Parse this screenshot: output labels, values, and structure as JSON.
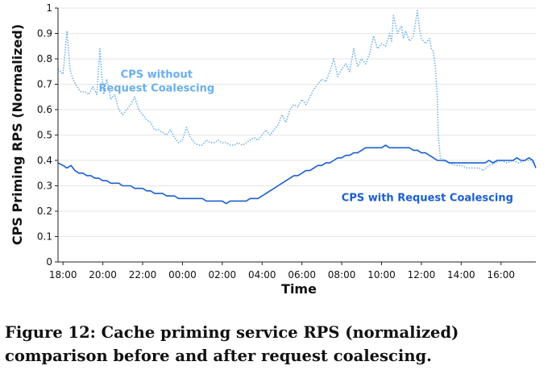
{
  "chart_data": {
    "type": "line",
    "xlabel": "Time",
    "ylabel": "CPS Priming RPS (Normalized)",
    "xlim": [
      -0.25,
      23.75
    ],
    "ylim": [
      0,
      1
    ],
    "x_ticks": [
      {
        "label": "18:00",
        "value": 0
      },
      {
        "label": "20:00",
        "value": 2
      },
      {
        "label": "22:00",
        "value": 4
      },
      {
        "label": "00:00",
        "value": 6
      },
      {
        "label": "02:00",
        "value": 8
      },
      {
        "label": "04:00",
        "value": 10
      },
      {
        "label": "06:00",
        "value": 12
      },
      {
        "label": "08:00",
        "value": 14
      },
      {
        "label": "10:00",
        "value": 16
      },
      {
        "label": "12:00",
        "value": 18
      },
      {
        "label": "14:00",
        "value": 20
      },
      {
        "label": "16:00",
        "value": 22
      }
    ],
    "y_ticks": [
      "0",
      "0.1",
      "0.2",
      "0.3",
      "0.4",
      "0.5",
      "0.6",
      "0.7",
      "0.8",
      "0.9",
      "1"
    ],
    "grid": true,
    "series": [
      {
        "name": "CPS without Request Coalescing",
        "color": "#6aaeea",
        "style": "dotted",
        "x": [
          -0.25,
          0.0,
          0.1,
          0.2,
          0.35,
          0.5,
          0.7,
          0.9,
          1.1,
          1.3,
          1.5,
          1.7,
          1.85,
          1.95,
          2.05,
          2.2,
          2.4,
          2.6,
          2.8,
          3.0,
          3.2,
          3.4,
          3.6,
          3.8,
          4.0,
          4.2,
          4.4,
          4.6,
          4.8,
          5.0,
          5.2,
          5.4,
          5.6,
          5.8,
          6.0,
          6.2,
          6.4,
          6.6,
          6.8,
          7.0,
          7.2,
          7.4,
          7.6,
          7.8,
          8.0,
          8.2,
          8.4,
          8.6,
          8.8,
          9.0,
          9.2,
          9.4,
          9.6,
          9.8,
          10.0,
          10.2,
          10.4,
          10.6,
          10.8,
          11.0,
          11.2,
          11.4,
          11.6,
          11.8,
          12.0,
          12.2,
          12.4,
          12.6,
          12.8,
          13.0,
          13.2,
          13.4,
          13.6,
          13.8,
          14.0,
          14.2,
          14.4,
          14.6,
          14.8,
          15.0,
          15.2,
          15.4,
          15.6,
          15.8,
          16.0,
          16.2,
          16.4,
          16.5,
          16.6,
          16.8,
          17.0,
          17.1,
          17.2,
          17.4,
          17.6,
          17.8,
          17.9,
          18.0,
          18.2,
          18.4,
          18.5,
          18.6,
          18.7,
          18.8,
          18.85,
          18.95,
          19.1,
          19.4,
          19.7,
          20.0,
          20.3,
          20.6,
          20.9,
          21.1,
          21.4,
          21.7,
          22.0,
          22.3,
          22.6,
          22.9,
          23.2,
          23.5,
          23.75
        ],
        "y": [
          0.76,
          0.74,
          0.82,
          0.91,
          0.76,
          0.72,
          0.69,
          0.67,
          0.67,
          0.66,
          0.69,
          0.66,
          0.84,
          0.73,
          0.66,
          0.72,
          0.64,
          0.66,
          0.6,
          0.58,
          0.6,
          0.62,
          0.65,
          0.6,
          0.58,
          0.56,
          0.55,
          0.52,
          0.52,
          0.51,
          0.5,
          0.52,
          0.49,
          0.47,
          0.48,
          0.53,
          0.49,
          0.47,
          0.46,
          0.46,
          0.48,
          0.47,
          0.47,
          0.48,
          0.47,
          0.47,
          0.46,
          0.46,
          0.47,
          0.46,
          0.47,
          0.48,
          0.49,
          0.48,
          0.5,
          0.52,
          0.5,
          0.52,
          0.54,
          0.58,
          0.55,
          0.6,
          0.62,
          0.61,
          0.64,
          0.62,
          0.65,
          0.68,
          0.7,
          0.72,
          0.71,
          0.75,
          0.8,
          0.73,
          0.76,
          0.78,
          0.75,
          0.84,
          0.77,
          0.8,
          0.78,
          0.82,
          0.89,
          0.84,
          0.86,
          0.85,
          0.9,
          0.87,
          0.97,
          0.9,
          0.93,
          0.88,
          0.91,
          0.87,
          0.89,
          0.99,
          0.92,
          0.88,
          0.86,
          0.88,
          0.84,
          0.83,
          0.77,
          0.65,
          0.5,
          0.41,
          0.4,
          0.39,
          0.38,
          0.38,
          0.37,
          0.37,
          0.37,
          0.36,
          0.38,
          0.39,
          0.4,
          0.39,
          0.4,
          0.39,
          0.4,
          0.4,
          0.38
        ]
      },
      {
        "name": "CPS with Request Coalescing",
        "color": "#1a5fd0",
        "style": "solid",
        "x": [
          -0.25,
          0.0,
          0.2,
          0.4,
          0.6,
          0.8,
          1.0,
          1.2,
          1.4,
          1.6,
          1.8,
          2.0,
          2.2,
          2.4,
          2.6,
          2.8,
          3.0,
          3.2,
          3.4,
          3.6,
          3.8,
          4.0,
          4.2,
          4.4,
          4.6,
          4.8,
          5.0,
          5.2,
          5.4,
          5.6,
          5.8,
          6.0,
          6.2,
          6.4,
          6.6,
          6.8,
          7.0,
          7.2,
          7.4,
          7.6,
          7.8,
          8.0,
          8.2,
          8.4,
          8.6,
          8.8,
          9.0,
          9.2,
          9.4,
          9.6,
          9.8,
          10.0,
          10.2,
          10.4,
          10.6,
          10.8,
          11.0,
          11.2,
          11.4,
          11.6,
          11.8,
          12.0,
          12.2,
          12.4,
          12.6,
          12.8,
          13.0,
          13.2,
          13.4,
          13.6,
          13.8,
          14.0,
          14.2,
          14.4,
          14.6,
          14.8,
          15.0,
          15.2,
          15.4,
          15.6,
          15.8,
          16.0,
          16.2,
          16.4,
          16.6,
          16.8,
          17.0,
          17.2,
          17.4,
          17.6,
          17.8,
          18.0,
          18.2,
          18.4,
          18.6,
          18.8,
          19.0,
          19.2,
          19.4,
          19.6,
          19.8,
          20.0,
          20.2,
          20.4,
          20.6,
          20.8,
          21.0,
          21.2,
          21.4,
          21.6,
          21.8,
          22.0,
          22.2,
          22.4,
          22.6,
          22.8,
          23.0,
          23.2,
          23.4,
          23.6,
          23.75
        ],
        "y": [
          0.39,
          0.38,
          0.37,
          0.38,
          0.36,
          0.35,
          0.35,
          0.34,
          0.34,
          0.33,
          0.33,
          0.32,
          0.32,
          0.31,
          0.31,
          0.31,
          0.3,
          0.3,
          0.3,
          0.29,
          0.29,
          0.29,
          0.28,
          0.28,
          0.27,
          0.27,
          0.27,
          0.26,
          0.26,
          0.26,
          0.25,
          0.25,
          0.25,
          0.25,
          0.25,
          0.25,
          0.25,
          0.24,
          0.24,
          0.24,
          0.24,
          0.24,
          0.23,
          0.24,
          0.24,
          0.24,
          0.24,
          0.24,
          0.25,
          0.25,
          0.25,
          0.26,
          0.27,
          0.28,
          0.29,
          0.3,
          0.31,
          0.32,
          0.33,
          0.34,
          0.34,
          0.35,
          0.36,
          0.36,
          0.37,
          0.38,
          0.38,
          0.39,
          0.39,
          0.4,
          0.41,
          0.41,
          0.42,
          0.42,
          0.43,
          0.43,
          0.44,
          0.45,
          0.45,
          0.45,
          0.45,
          0.45,
          0.46,
          0.45,
          0.45,
          0.45,
          0.45,
          0.45,
          0.45,
          0.44,
          0.44,
          0.43,
          0.43,
          0.42,
          0.41,
          0.4,
          0.4,
          0.4,
          0.39,
          0.39,
          0.39,
          0.39,
          0.39,
          0.39,
          0.39,
          0.39,
          0.39,
          0.39,
          0.4,
          0.39,
          0.4,
          0.4,
          0.4,
          0.4,
          0.4,
          0.41,
          0.4,
          0.4,
          0.41,
          0.4,
          0.37
        ]
      }
    ],
    "annotations": [
      {
        "text": [
          "CPS without",
          "Request Coalescing"
        ],
        "color": "#6aaeea",
        "x": 4.7,
        "y": 0.725
      },
      {
        "text": [
          "CPS with Request Coalescing"
        ],
        "color": "#1a5fd0",
        "x": 18.3,
        "y": 0.24
      }
    ]
  },
  "caption": "Figure 12: Cache priming service RPS (normalized) comparison before and after request coalescing."
}
